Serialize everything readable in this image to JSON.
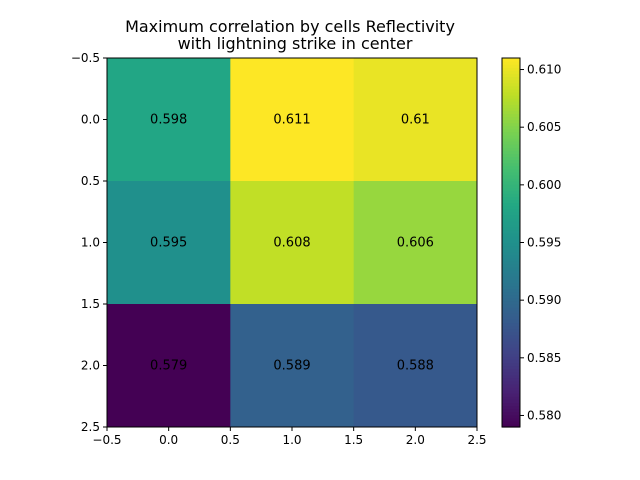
{
  "chart_data": {
    "type": "heatmap",
    "title_lines": [
      "Maximum correlation by cells Reflectivity",
      "with lightning strike in center"
    ],
    "x_ticks": [
      "−0.5",
      "0.0",
      "0.5",
      "1.0",
      "1.5",
      "2.0",
      "2.5"
    ],
    "x_tick_values": [
      -0.5,
      0.0,
      0.5,
      1.0,
      1.5,
      2.0,
      2.5
    ],
    "y_ticks": [
      "−0.5",
      "0.0",
      "0.5",
      "1.0",
      "1.5",
      "2.0",
      "2.5"
    ],
    "y_tick_values": [
      -0.5,
      0.0,
      0.5,
      1.0,
      1.5,
      2.0,
      2.5
    ],
    "xlim": [
      -0.5,
      2.5
    ],
    "ylim": [
      2.5,
      -0.5
    ],
    "values": [
      [
        0.598,
        0.611,
        0.61
      ],
      [
        0.595,
        0.608,
        0.606
      ],
      [
        0.579,
        0.589,
        0.588
      ]
    ],
    "cell_labels": [
      [
        "0.598",
        "0.611",
        "0.61"
      ],
      [
        "0.595",
        "0.608",
        "0.606"
      ],
      [
        "0.579",
        "0.589",
        "0.588"
      ]
    ],
    "colormap": "viridis",
    "colorbar": {
      "range": [
        0.579,
        0.611
      ],
      "ticks": [
        "0.580",
        "0.585",
        "0.590",
        "0.595",
        "0.600",
        "0.605",
        "0.610"
      ],
      "tick_values": [
        0.58,
        0.585,
        0.59,
        0.595,
        0.6,
        0.605,
        0.61
      ]
    }
  }
}
